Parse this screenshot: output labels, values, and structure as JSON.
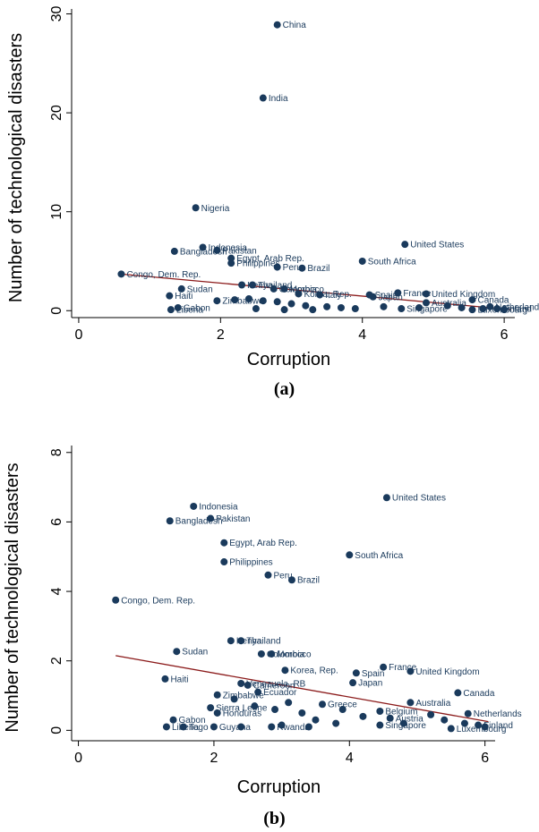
{
  "chart_data": [
    {
      "type": "scatter",
      "panel_label": "(a)",
      "xlabel": "Corruption",
      "ylabel": "Number of technological disasters",
      "xlim": [
        -0.1,
        6.15
      ],
      "ylim": [
        -0.7,
        30.5
      ],
      "xticks": [
        0,
        2,
        4,
        6
      ],
      "yticks": [
        0,
        10,
        20,
        30
      ],
      "fit_line": {
        "x": [
          0.6,
          6.1
        ],
        "y": [
          3.7,
          0.1
        ]
      },
      "points": [
        {
          "x": 2.8,
          "y": 28.9,
          "label": "China"
        },
        {
          "x": 2.6,
          "y": 21.5,
          "label": "India"
        },
        {
          "x": 1.65,
          "y": 10.4,
          "label": "Nigeria"
        },
        {
          "x": 4.6,
          "y": 6.7,
          "label": "United States"
        },
        {
          "x": 1.75,
          "y": 6.4,
          "label": "Indonesia"
        },
        {
          "x": 1.35,
          "y": 6.0,
          "label": "Bangladesh"
        },
        {
          "x": 1.95,
          "y": 6.1,
          "label": "Pakistan"
        },
        {
          "x": 2.15,
          "y": 5.3,
          "label": "Egypt, Arab Rep."
        },
        {
          "x": 4.0,
          "y": 5.0,
          "label": "South Africa"
        },
        {
          "x": 2.15,
          "y": 4.8,
          "label": "Philippines"
        },
        {
          "x": 2.8,
          "y": 4.4,
          "label": "Peru"
        },
        {
          "x": 3.15,
          "y": 4.3,
          "label": "Brazil"
        },
        {
          "x": 0.6,
          "y": 3.7,
          "label": "Congo, Dem. Rep."
        },
        {
          "x": 2.3,
          "y": 2.6,
          "label": "Kenya"
        },
        {
          "x": 2.45,
          "y": 2.6,
          "label": "Thailand"
        },
        {
          "x": 1.45,
          "y": 2.2,
          "label": "Sudan"
        },
        {
          "x": 2.75,
          "y": 2.2,
          "label": "Colombia"
        },
        {
          "x": 2.9,
          "y": 2.2,
          "label": "Morocco"
        },
        {
          "x": 3.1,
          "y": 1.7,
          "label": "Korea, Rep."
        },
        {
          "x": 3.4,
          "y": 1.6,
          "label": "Italy"
        },
        {
          "x": 4.1,
          "y": 1.6,
          "label": "Spain"
        },
        {
          "x": 4.15,
          "y": 1.4,
          "label": "Japan"
        },
        {
          "x": 4.5,
          "y": 1.8,
          "label": "France"
        },
        {
          "x": 4.9,
          "y": 1.7,
          "label": "United Kingdom"
        },
        {
          "x": 1.28,
          "y": 1.5,
          "label": "Haiti"
        },
        {
          "x": 5.55,
          "y": 1.1,
          "label": "Canada"
        },
        {
          "x": 4.9,
          "y": 0.8,
          "label": "Australia"
        },
        {
          "x": 1.95,
          "y": 1.0,
          "label": "Zimbabwe"
        },
        {
          "x": 1.4,
          "y": 0.3,
          "label": "Gabon"
        },
        {
          "x": 1.3,
          "y": 0.1,
          "label": "Liberia"
        },
        {
          "x": 4.55,
          "y": 0.2,
          "label": "Singapore"
        },
        {
          "x": 5.55,
          "y": 0.1,
          "label": "Luxembourg"
        },
        {
          "x": 5.9,
          "y": 0.2,
          "label": "Finland"
        },
        {
          "x": 5.8,
          "y": 0.4,
          "label": "Netherlands"
        },
        {
          "x": 2.2,
          "y": 1.1,
          "label": ""
        },
        {
          "x": 2.4,
          "y": 1.2,
          "label": ""
        },
        {
          "x": 2.6,
          "y": 1.0,
          "label": ""
        },
        {
          "x": 2.8,
          "y": 0.9,
          "label": ""
        },
        {
          "x": 3.0,
          "y": 0.7,
          "label": ""
        },
        {
          "x": 3.2,
          "y": 0.5,
          "label": ""
        },
        {
          "x": 3.5,
          "y": 0.4,
          "label": ""
        },
        {
          "x": 3.7,
          "y": 0.3,
          "label": ""
        },
        {
          "x": 3.9,
          "y": 0.2,
          "label": ""
        },
        {
          "x": 4.3,
          "y": 0.4,
          "label": ""
        },
        {
          "x": 4.8,
          "y": 0.3,
          "label": ""
        },
        {
          "x": 5.2,
          "y": 0.5,
          "label": ""
        },
        {
          "x": 5.4,
          "y": 0.3,
          "label": ""
        },
        {
          "x": 5.7,
          "y": 0.2,
          "label": ""
        },
        {
          "x": 6.0,
          "y": 0.1,
          "label": ""
        },
        {
          "x": 2.5,
          "y": 0.2,
          "label": ""
        },
        {
          "x": 2.9,
          "y": 0.1,
          "label": ""
        },
        {
          "x": 3.3,
          "y": 0.1,
          "label": ""
        }
      ]
    },
    {
      "type": "scatter",
      "panel_label": "(b)",
      "xlabel": "Corruption",
      "ylabel": "Number of technological disasters",
      "xlim": [
        -0.1,
        6.15
      ],
      "ylim": [
        -0.3,
        8.2
      ],
      "xticks": [
        0,
        2,
        4,
        6
      ],
      "yticks": [
        0,
        2,
        4,
        6,
        8
      ],
      "fit_line": {
        "x": [
          0.55,
          6.05
        ],
        "y": [
          2.15,
          0.25
        ]
      },
      "points": [
        {
          "x": 4.55,
          "y": 6.7,
          "label": "United States"
        },
        {
          "x": 1.7,
          "y": 6.45,
          "label": "Indonesia"
        },
        {
          "x": 1.35,
          "y": 6.03,
          "label": "Bangladesh"
        },
        {
          "x": 1.95,
          "y": 6.1,
          "label": "Pakistan"
        },
        {
          "x": 2.15,
          "y": 5.4,
          "label": "Egypt, Arab Rep."
        },
        {
          "x": 4.0,
          "y": 5.05,
          "label": "South Africa"
        },
        {
          "x": 2.15,
          "y": 4.85,
          "label": "Philippines"
        },
        {
          "x": 2.8,
          "y": 4.47,
          "label": "Peru"
        },
        {
          "x": 3.15,
          "y": 4.33,
          "label": "Brazil"
        },
        {
          "x": 0.55,
          "y": 3.75,
          "label": "Congo, Dem. Rep."
        },
        {
          "x": 2.25,
          "y": 2.58,
          "label": "Kenya"
        },
        {
          "x": 2.4,
          "y": 2.58,
          "label": "Thailand"
        },
        {
          "x": 1.45,
          "y": 2.27,
          "label": "Sudan"
        },
        {
          "x": 2.7,
          "y": 2.2,
          "label": "Colombia"
        },
        {
          "x": 2.85,
          "y": 2.2,
          "label": "Morocco"
        },
        {
          "x": 4.5,
          "y": 1.82,
          "label": "France"
        },
        {
          "x": 3.05,
          "y": 1.73,
          "label": "Korea, Rep."
        },
        {
          "x": 4.9,
          "y": 1.7,
          "label": "United Kingdom"
        },
        {
          "x": 4.1,
          "y": 1.65,
          "label": "Spain"
        },
        {
          "x": 4.05,
          "y": 1.37,
          "label": "Japan"
        },
        {
          "x": 1.28,
          "y": 1.48,
          "label": "Haiti"
        },
        {
          "x": 5.6,
          "y": 1.08,
          "label": "Canada"
        },
        {
          "x": 2.05,
          "y": 1.02,
          "label": "Zimbabwe"
        },
        {
          "x": 4.9,
          "y": 0.8,
          "label": "Australia"
        },
        {
          "x": 2.5,
          "y": 1.3,
          "label": "Cameroon"
        },
        {
          "x": 2.65,
          "y": 1.1,
          "label": "Ecuador"
        },
        {
          "x": 2.4,
          "y": 1.35,
          "label": "Venezuela, RB"
        },
        {
          "x": 3.6,
          "y": 0.75,
          "label": "Greece"
        },
        {
          "x": 1.95,
          "y": 0.65,
          "label": "Sierra Leone"
        },
        {
          "x": 2.05,
          "y": 0.5,
          "label": "Honduras"
        },
        {
          "x": 4.45,
          "y": 0.55,
          "label": "Belgium"
        },
        {
          "x": 4.6,
          "y": 0.35,
          "label": "Austria"
        },
        {
          "x": 5.75,
          "y": 0.48,
          "label": "Netherlands"
        },
        {
          "x": 1.4,
          "y": 0.3,
          "label": "Gabon"
        },
        {
          "x": 1.3,
          "y": 0.1,
          "label": "Liberia"
        },
        {
          "x": 1.55,
          "y": 0.1,
          "label": "Togo"
        },
        {
          "x": 2.0,
          "y": 0.1,
          "label": "Guyana"
        },
        {
          "x": 2.85,
          "y": 0.1,
          "label": "Rwanda"
        },
        {
          "x": 4.45,
          "y": 0.15,
          "label": "Singapore"
        },
        {
          "x": 5.5,
          "y": 0.05,
          "label": "Luxembourg"
        },
        {
          "x": 5.9,
          "y": 0.15,
          "label": "Finland"
        },
        {
          "x": 2.3,
          "y": 0.9,
          "label": ""
        },
        {
          "x": 2.6,
          "y": 0.7,
          "label": ""
        },
        {
          "x": 2.9,
          "y": 0.6,
          "label": ""
        },
        {
          "x": 3.1,
          "y": 0.8,
          "label": ""
        },
        {
          "x": 3.3,
          "y": 0.5,
          "label": ""
        },
        {
          "x": 3.5,
          "y": 0.3,
          "label": ""
        },
        {
          "x": 3.8,
          "y": 0.2,
          "label": ""
        },
        {
          "x": 4.2,
          "y": 0.4,
          "label": ""
        },
        {
          "x": 4.8,
          "y": 0.2,
          "label": ""
        },
        {
          "x": 5.2,
          "y": 0.45,
          "label": ""
        },
        {
          "x": 5.4,
          "y": 0.3,
          "label": ""
        },
        {
          "x": 5.7,
          "y": 0.2,
          "label": ""
        },
        {
          "x": 6.0,
          "y": 0.1,
          "label": ""
        },
        {
          "x": 2.4,
          "y": 0.1,
          "label": ""
        },
        {
          "x": 3.0,
          "y": 0.15,
          "label": ""
        },
        {
          "x": 3.4,
          "y": 0.1,
          "label": ""
        },
        {
          "x": 3.9,
          "y": 0.6,
          "label": ""
        }
      ]
    }
  ]
}
